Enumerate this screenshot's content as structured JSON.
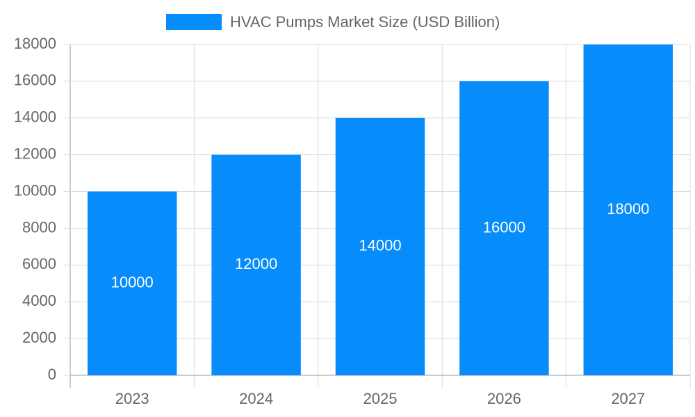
{
  "chart_data": {
    "type": "bar",
    "categories": [
      "2023",
      "2024",
      "2025",
      "2026",
      "2027"
    ],
    "series": [
      {
        "name": "HVAC Pumps Market Size (USD Billion)",
        "color": "#068cfb",
        "values": [
          10000,
          12000,
          14000,
          16000,
          18000
        ]
      }
    ],
    "ylim": [
      0,
      18000
    ],
    "yticks": [
      0,
      2000,
      4000,
      6000,
      8000,
      10000,
      12000,
      14000,
      16000,
      18000
    ],
    "grid": true,
    "legend": "top",
    "data_labels": true
  }
}
